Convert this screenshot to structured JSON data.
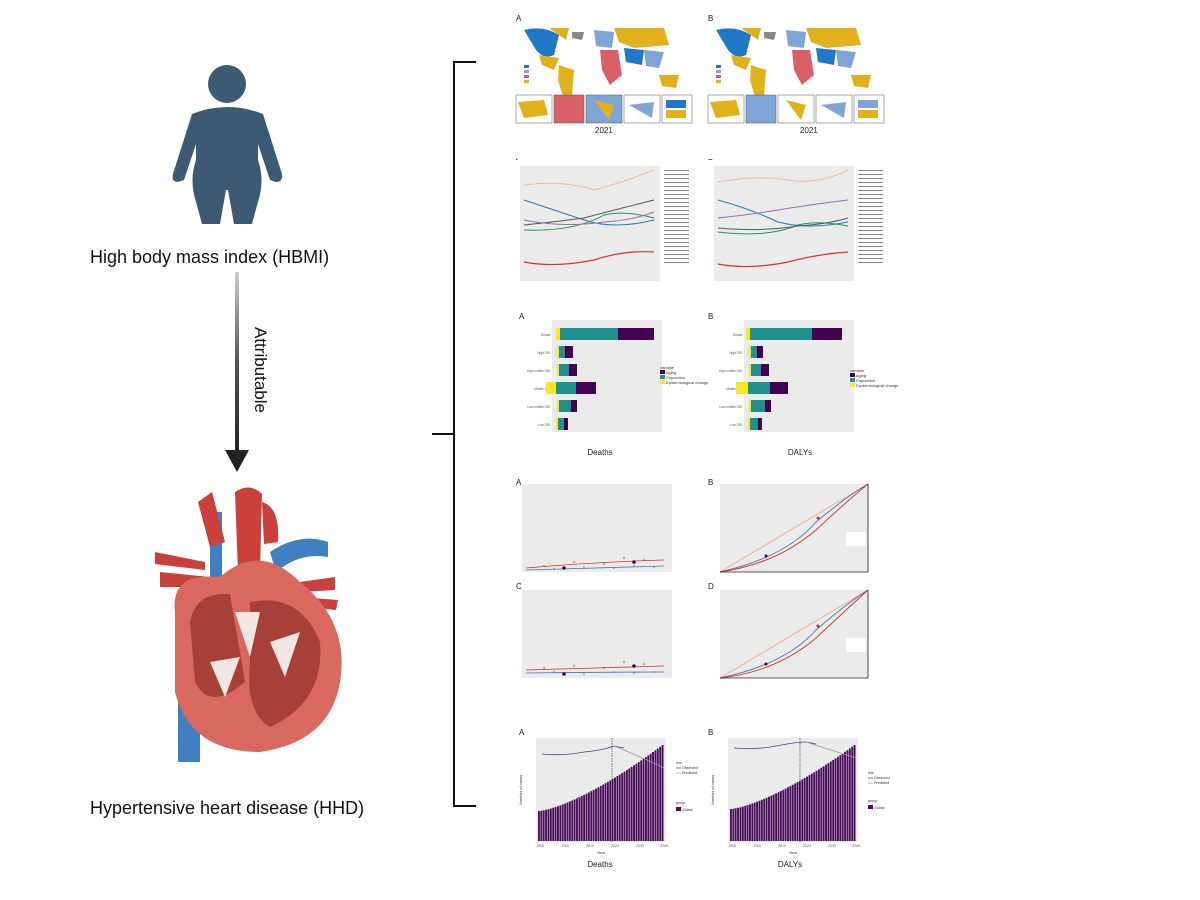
{
  "left": {
    "exposure_label": "High body mass index (HBMI)",
    "arrow_label": "Attributable",
    "outcome_label": "Hypertensive heart disease (HHD)"
  },
  "figures": {
    "maps": {
      "label_a": "A",
      "label_b": "B",
      "year_a": "2021",
      "year_b": "2021"
    },
    "trends": {
      "label_a": "A",
      "label_b": "B"
    },
    "decomposition": {
      "label_a": "A",
      "label_b": "B",
      "title_a": "Deaths",
      "title_b": "DALYs",
      "categories": [
        "Global",
        "High SDI",
        "High-middle SDI",
        "Middle SDI",
        "Low-middle SDI",
        "Low SDI"
      ],
      "legend_title": "variable",
      "legend_items": [
        "Aging",
        "Population",
        "Epidemiological change"
      ],
      "colors": {
        "aging": "#440154",
        "population": "#21908c",
        "epi": "#fde725"
      }
    },
    "inequality": {
      "label_a": "A",
      "label_b": "B",
      "label_c": "C",
      "label_d": "D"
    },
    "projection": {
      "label_a": "A",
      "label_b": "B",
      "title_a": "Deaths",
      "title_b": "DALYs",
      "x_label": "Year",
      "y_label": "Number of cases",
      "x_ticks": [
        "1990",
        "2000",
        "2010",
        "2020",
        "2030",
        "2040"
      ],
      "legend_line_title": "line",
      "legend_line_items": [
        "Observed",
        "Predicted"
      ],
      "legend_group_title": "group",
      "legend_group_item": "Global",
      "bar_color": "#4b0f5c"
    }
  }
}
